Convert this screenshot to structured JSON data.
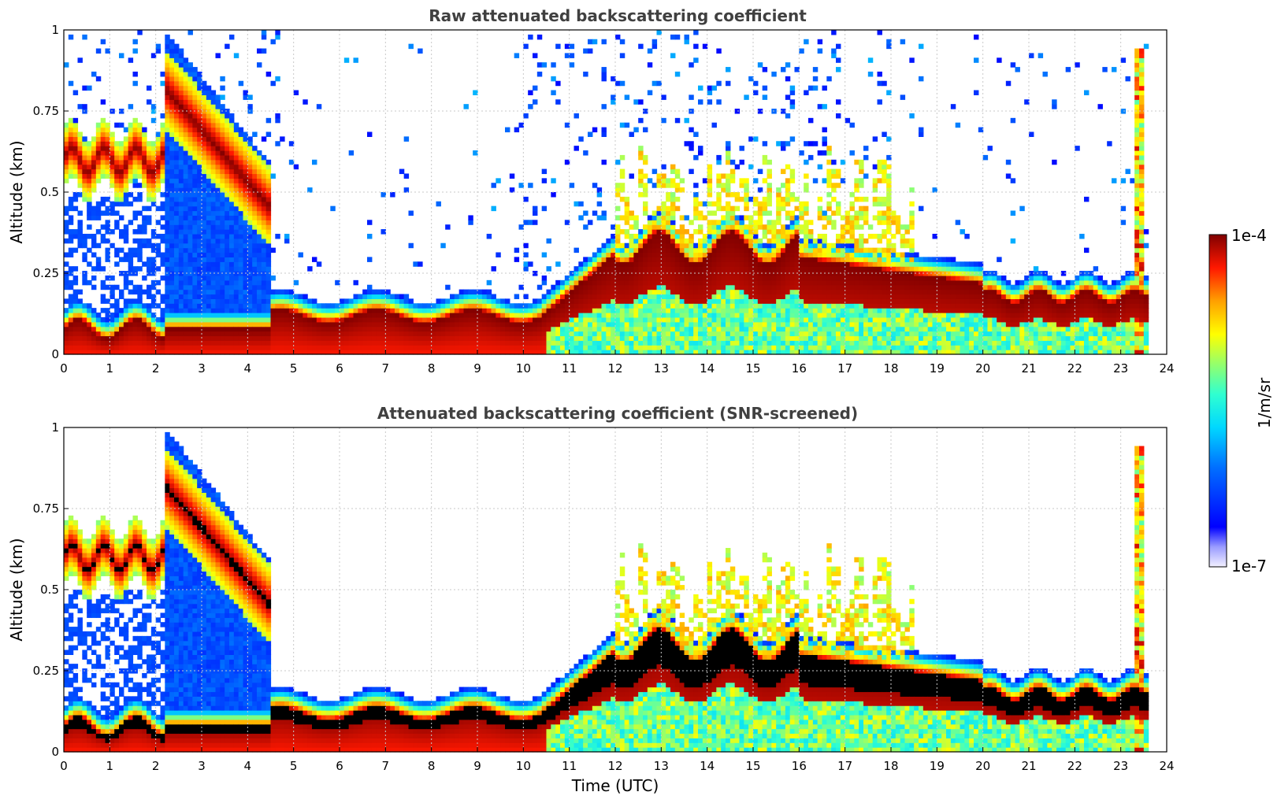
{
  "chart_data": [
    {
      "type": "heatmap",
      "title": "Raw attenuated backscattering coefficient",
      "xlabel": "",
      "ylabel": "Altitude (km)",
      "xlim": [
        0,
        24
      ],
      "ylim": [
        0,
        1
      ],
      "xticks": [
        "0",
        "1",
        "2",
        "3",
        "4",
        "5",
        "6",
        "7",
        "8",
        "9",
        "10",
        "11",
        "12",
        "13",
        "14",
        "15",
        "16",
        "17",
        "18",
        "19",
        "20",
        "21",
        "22",
        "23",
        "24"
      ],
      "yticks": [
        "0",
        "0.25",
        "0.5",
        "0.75",
        "1"
      ],
      "data_end_time": 23.6,
      "screened": false
    },
    {
      "type": "heatmap",
      "title": "Attenuated backscattering coefficient (SNR-screened)",
      "xlabel": "Time (UTC)",
      "ylabel": "Altitude (km)",
      "xlim": [
        0,
        24
      ],
      "ylim": [
        0,
        1
      ],
      "xticks": [
        "0",
        "1",
        "2",
        "3",
        "4",
        "5",
        "6",
        "7",
        "8",
        "9",
        "10",
        "11",
        "12",
        "13",
        "14",
        "15",
        "16",
        "17",
        "18",
        "19",
        "20",
        "21",
        "22",
        "23",
        "24"
      ],
      "yticks": [
        "0",
        "0.25",
        "0.5",
        "0.75",
        "1"
      ],
      "data_end_time": 23.6,
      "screened": true
    }
  ],
  "colorbar": {
    "label": "1/m/sr",
    "max_label": "1e-4",
    "min_label": "1e-7",
    "colormap": "jet"
  },
  "colors": {
    "axis": "#000000",
    "title": "#404040",
    "grid": "#c8c8c8",
    "saturated": "#000000"
  }
}
